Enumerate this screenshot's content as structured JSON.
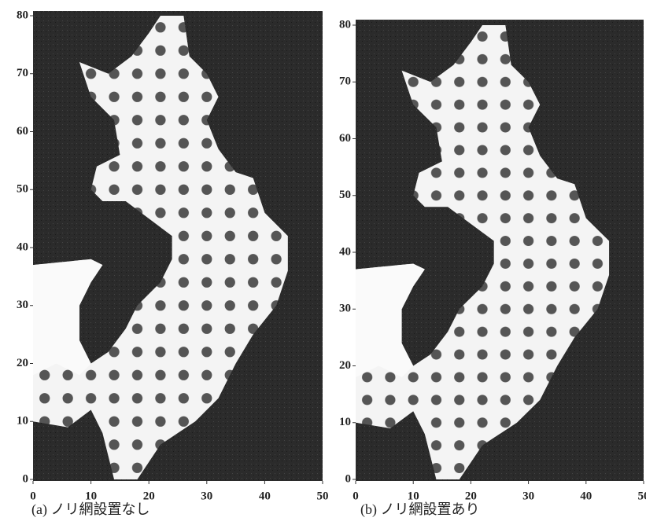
{
  "chart_data": [
    {
      "type": "map",
      "caption": "(a)  ノリ網設置なし",
      "xlim": [
        0,
        50
      ],
      "ylim": [
        0,
        80
      ],
      "xticks": [
        0,
        10,
        20,
        30,
        40,
        50
      ],
      "yticks": [
        0,
        10,
        20,
        30,
        40,
        50,
        60,
        70,
        80
      ]
    },
    {
      "type": "map",
      "caption": "(b)  ノリ網設置あり",
      "xlim": [
        0,
        50
      ],
      "ylim": [
        0,
        80
      ],
      "xticks": [
        0,
        10,
        20,
        30,
        40,
        50
      ],
      "yticks": [
        0,
        10,
        20,
        30,
        40,
        50,
        60,
        70,
        80
      ]
    }
  ]
}
